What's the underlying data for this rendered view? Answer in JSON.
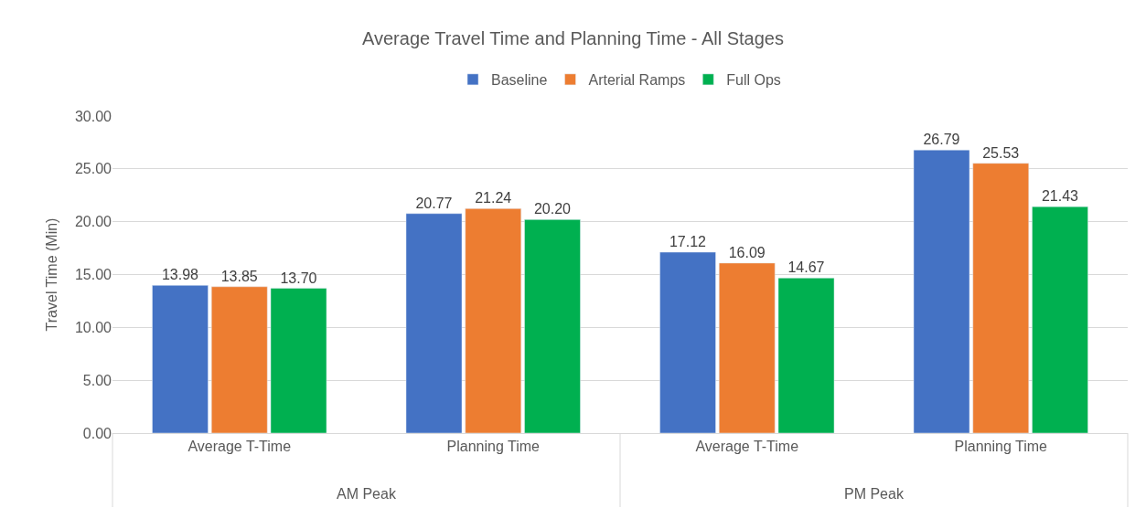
{
  "chart_data": {
    "type": "bar",
    "title": "Average Travel Time and Planning Time - All Stages",
    "ylabel": "Travel Time (Min)",
    "categories": [
      "Average T-Time",
      "Planning Time",
      "Average T-Time",
      "Planning Time"
    ],
    "annotations": [
      "AM Peak",
      "PM Peak"
    ],
    "series": [
      {
        "name": "Baseline",
        "color": "#4472c4",
        "values": [
          13.98,
          20.77,
          17.12,
          26.79
        ],
        "value_labels": [
          "13.98",
          "20.77",
          "17.12",
          "26.79"
        ]
      },
      {
        "name": "Arterial Ramps",
        "color": "#ed7d31",
        "values": [
          13.85,
          21.24,
          16.09,
          25.53
        ],
        "value_labels": [
          "13.85",
          "21.24",
          "16.09",
          "25.53"
        ]
      },
      {
        "name": "Full Ops",
        "color": "#00b050",
        "values": [
          13.7,
          20.2,
          14.67,
          21.43
        ],
        "value_labels": [
          "13.70",
          "20.20",
          "14.67",
          "21.43"
        ]
      }
    ],
    "ylim": [
      0,
      30
    ],
    "yticks": [
      {
        "value": 0,
        "label": "0.00"
      },
      {
        "value": 5,
        "label": "5.00"
      },
      {
        "value": 10,
        "label": "10.00"
      },
      {
        "value": 15,
        "label": "15.00"
      },
      {
        "value": 20,
        "label": "20.00"
      },
      {
        "value": 25,
        "label": "25.00"
      },
      {
        "value": 30,
        "label": "30.00"
      }
    ],
    "grid": "y",
    "legend": "top"
  }
}
